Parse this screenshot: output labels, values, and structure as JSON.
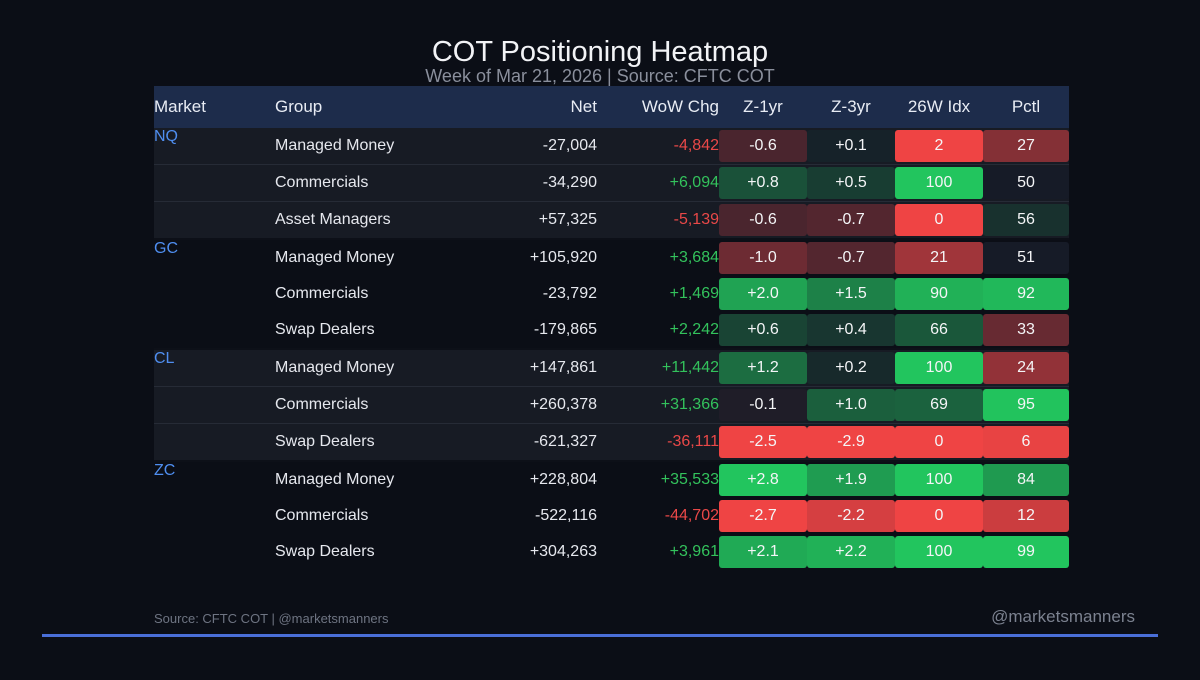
{
  "chart_data": {
    "type": "table",
    "title": "COT Positioning Heatmap",
    "subtitle": "Week of Mar 21, 2026 | Source: CFTC COT",
    "columns": [
      "Market",
      "Group",
      "Net",
      "WoW Chg",
      "Z-1yr",
      "Z-3yr",
      "26W Idx",
      "Pctl"
    ],
    "rows": [
      {
        "market": "NQ",
        "group": "Managed Money",
        "net": "-27,004",
        "wow": "-4,842",
        "z1": "-0.6",
        "z3": "+0.1",
        "idx": "2",
        "pct": "27"
      },
      {
        "market": "",
        "group": "Commercials",
        "net": "-34,290",
        "wow": "+6,094",
        "z1": "+0.8",
        "z3": "+0.5",
        "idx": "100",
        "pct": "50"
      },
      {
        "market": "",
        "group": "Asset Managers",
        "net": "+57,325",
        "wow": "-5,139",
        "z1": "-0.6",
        "z3": "-0.7",
        "idx": "0",
        "pct": "56"
      },
      {
        "market": "GC",
        "group": "Managed Money",
        "net": "+105,920",
        "wow": "+3,684",
        "z1": "-1.0",
        "z3": "-0.7",
        "idx": "21",
        "pct": "51"
      },
      {
        "market": "",
        "group": "Commercials",
        "net": "-23,792",
        "wow": "+1,469",
        "z1": "+2.0",
        "z3": "+1.5",
        "idx": "90",
        "pct": "92"
      },
      {
        "market": "",
        "group": "Swap Dealers",
        "net": "-179,865",
        "wow": "+2,242",
        "z1": "+0.6",
        "z3": "+0.4",
        "idx": "66",
        "pct": "33"
      },
      {
        "market": "CL",
        "group": "Managed Money",
        "net": "+147,861",
        "wow": "+11,442",
        "z1": "+1.2",
        "z3": "+0.2",
        "idx": "100",
        "pct": "24"
      },
      {
        "market": "",
        "group": "Commercials",
        "net": "+260,378",
        "wow": "+31,366",
        "z1": "-0.1",
        "z3": "+1.0",
        "idx": "69",
        "pct": "95"
      },
      {
        "market": "",
        "group": "Swap Dealers",
        "net": "-621,327",
        "wow": "-36,111",
        "z1": "-2.5",
        "z3": "-2.9",
        "idx": "0",
        "pct": "6"
      },
      {
        "market": "ZC",
        "group": "Managed Money",
        "net": "+228,804",
        "wow": "+35,533",
        "z1": "+2.8",
        "z3": "+1.9",
        "idx": "100",
        "pct": "84"
      },
      {
        "market": "",
        "group": "Commercials",
        "net": "-522,116",
        "wow": "-44,702",
        "z1": "-2.7",
        "z3": "-2.2",
        "idx": "0",
        "pct": "12"
      },
      {
        "market": "",
        "group": "Swap Dealers",
        "net": "+304,263",
        "wow": "+3,961",
        "z1": "+2.1",
        "z3": "+2.2",
        "idx": "100",
        "pct": "99"
      }
    ]
  },
  "footer": {
    "source": "Source: CFTC COT | @marketsmanners",
    "handle": "@marketsmanners"
  },
  "colors": {
    "header_bg": "#1d2c4b",
    "market_label": "#4f8ef0",
    "positive": "#33c25c",
    "negative": "#e94848",
    "accent_rule": "#4a6fd8"
  }
}
